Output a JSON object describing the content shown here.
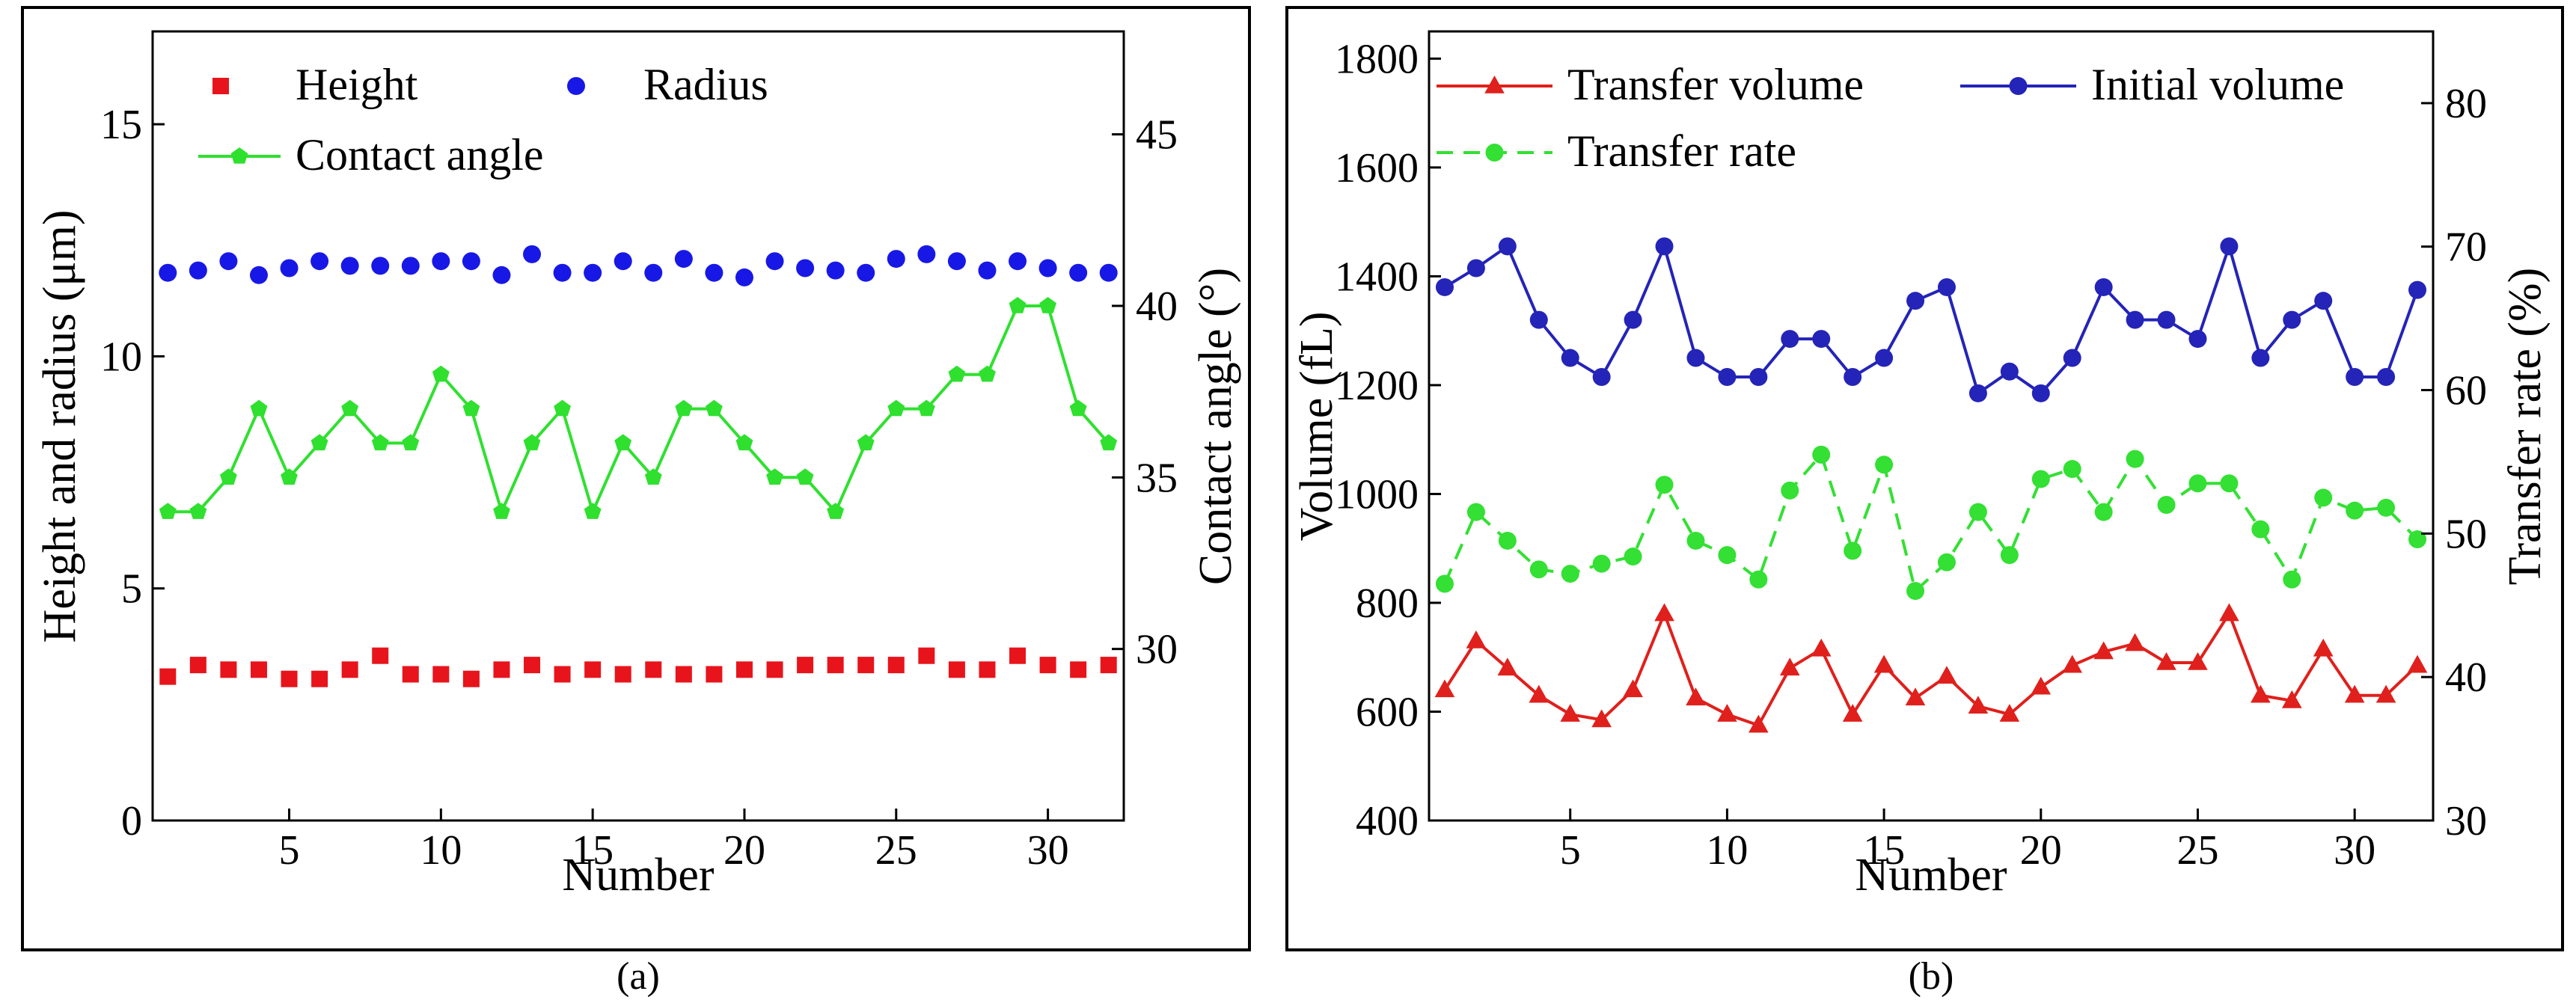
{
  "chart_data": [
    {
      "panel_label": "(a)",
      "type": "scatter+line",
      "xlabel": "Number",
      "ylabel_left": "Height and radius (μm)",
      "ylabel_right": "Contact angle (°)",
      "xlim": [
        0.5,
        32.5
      ],
      "ylim_left": [
        0,
        17
      ],
      "ylim_right": [
        25,
        48
      ],
      "x_ticks": [
        5,
        10,
        15,
        20,
        25,
        30
      ],
      "y_left_ticks": [
        0,
        5,
        10,
        15
      ],
      "y_right_ticks": [
        30,
        35,
        40,
        45
      ],
      "x": [
        1,
        2,
        3,
        4,
        5,
        6,
        7,
        8,
        9,
        10,
        11,
        12,
        13,
        14,
        15,
        16,
        17,
        18,
        19,
        20,
        21,
        22,
        23,
        24,
        25,
        26,
        27,
        28,
        29,
        30,
        31,
        32
      ],
      "series": [
        {
          "name": "Height",
          "axis": "left",
          "marker": "square",
          "line": false,
          "color": "#e8141b",
          "values": [
            3.1,
            3.35,
            3.25,
            3.25,
            3.05,
            3.05,
            3.25,
            3.55,
            3.15,
            3.15,
            3.05,
            3.25,
            3.35,
            3.15,
            3.25,
            3.15,
            3.25,
            3.15,
            3.15,
            3.25,
            3.25,
            3.35,
            3.35,
            3.35,
            3.35,
            3.55,
            3.25,
            3.25,
            3.55,
            3.35,
            3.25,
            3.35
          ]
        },
        {
          "name": "Radius",
          "axis": "left",
          "marker": "circle",
          "line": false,
          "color": "#1818e6",
          "values": [
            11.8,
            11.85,
            12.05,
            11.75,
            11.9,
            12.05,
            11.95,
            11.95,
            11.95,
            12.05,
            12.05,
            11.75,
            12.2,
            11.8,
            11.8,
            12.05,
            11.8,
            12.1,
            11.8,
            11.7,
            12.05,
            11.9,
            11.85,
            11.8,
            12.1,
            12.2,
            12.05,
            11.85,
            12.05,
            11.9,
            11.8,
            11.8
          ]
        },
        {
          "name": "Contact angle",
          "axis": "right",
          "marker": "pentagon",
          "line": true,
          "color": "#2fe02f",
          "values": [
            34,
            34,
            35,
            37,
            35,
            36,
            37,
            36,
            36,
            38,
            37,
            34,
            36,
            37,
            34,
            36,
            35,
            37,
            37,
            36,
            35,
            35,
            34,
            36,
            37,
            37,
            38,
            38,
            40,
            40,
            37,
            36
          ]
        }
      ],
      "legend": [
        {
          "label": "Height",
          "series": 0
        },
        {
          "label": "Radius",
          "series": 1
        },
        {
          "label": "Contact angle",
          "series": 2
        }
      ]
    },
    {
      "panel_label": "(b)",
      "type": "line",
      "xlabel": "Number",
      "ylabel_left": "Volume (fL)",
      "ylabel_right": "Transfer rate (%)",
      "xlim": [
        0.5,
        32.5
      ],
      "ylim_left": [
        400,
        1850
      ],
      "ylim_right": [
        30,
        85
      ],
      "x_ticks": [
        5,
        10,
        15,
        20,
        25,
        30
      ],
      "y_left_ticks": [
        400,
        600,
        800,
        1000,
        1200,
        1400,
        1600,
        1800
      ],
      "y_right_ticks": [
        30,
        40,
        50,
        60,
        70,
        80
      ],
      "x": [
        1,
        2,
        3,
        4,
        5,
        6,
        7,
        8,
        9,
        10,
        11,
        12,
        13,
        14,
        15,
        16,
        17,
        18,
        19,
        20,
        21,
        22,
        23,
        24,
        25,
        26,
        27,
        28,
        29,
        30,
        31,
        32
      ],
      "series": [
        {
          "name": "Transfer volume",
          "axis": "left",
          "marker": "triangle",
          "dash": false,
          "color": "#e0201c",
          "values": [
            640,
            730,
            680,
            630,
            595,
            585,
            640,
            780,
            625,
            595,
            575,
            680,
            715,
            595,
            685,
            625,
            665,
            610,
            595,
            645,
            685,
            710,
            725,
            690,
            690,
            780,
            630,
            620,
            715,
            630,
            630,
            685
          ]
        },
        {
          "name": "Initial volume",
          "axis": "left",
          "marker": "circle",
          "dash": false,
          "color": "#2424b8",
          "values": [
            1380,
            1415,
            1455,
            1320,
            1250,
            1215,
            1320,
            1455,
            1250,
            1215,
            1215,
            1285,
            1285,
            1215,
            1250,
            1355,
            1380,
            1185,
            1225,
            1185,
            1250,
            1380,
            1320,
            1320,
            1285,
            1455,
            1250,
            1320,
            1355,
            1215,
            1215,
            1375
          ]
        },
        {
          "name": "Transfer rate",
          "axis": "right",
          "marker": "circle",
          "dash": true,
          "color": "#33e033",
          "values": [
            46.5,
            51.5,
            49.5,
            47.5,
            47.2,
            47.9,
            48.4,
            53.4,
            49.5,
            48.5,
            46.8,
            53.0,
            55.5,
            48.8,
            54.8,
            46.0,
            48.0,
            51.5,
            48.5,
            53.8,
            54.5,
            51.5,
            55.2,
            52.0,
            53.5,
            53.5,
            50.3,
            46.8,
            52.5,
            51.6,
            51.8,
            49.6
          ]
        }
      ],
      "legend": [
        {
          "label": "Transfer volume",
          "series": 0
        },
        {
          "label": "Initial volume",
          "series": 1
        },
        {
          "label": "Transfer rate",
          "series": 2
        }
      ]
    }
  ]
}
